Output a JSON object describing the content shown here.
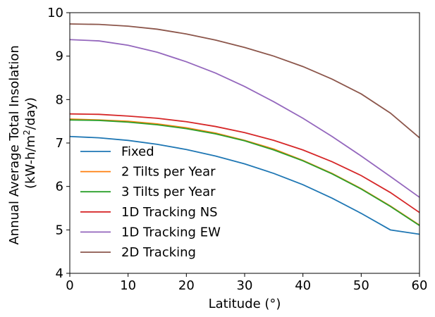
{
  "chart_data": {
    "type": "line",
    "title": "",
    "xlabel": "Latitude (°)",
    "ylabel_line1": "Annual Average Total Insolation",
    "ylabel_line2_prefix": "(kW-h/m",
    "ylabel_line2_sup": "2",
    "ylabel_line2_suffix": "/day)",
    "xlim": [
      0,
      60
    ],
    "ylim": [
      4,
      10
    ],
    "xticks": [
      0,
      10,
      20,
      30,
      40,
      50,
      60
    ],
    "yticks": [
      4,
      5,
      6,
      7,
      8,
      9,
      10
    ],
    "grid": false,
    "legend_position": "lower-left",
    "x": [
      0,
      5,
      10,
      15,
      20,
      25,
      30,
      35,
      40,
      45,
      50,
      55,
      60
    ],
    "series": [
      {
        "name": "Fixed",
        "color": "#1f77b4",
        "values": [
          7.15,
          7.12,
          7.06,
          6.97,
          6.85,
          6.7,
          6.52,
          6.3,
          6.04,
          5.73,
          5.38,
          5.0,
          4.9
        ]
      },
      {
        "name": "2 Tilts per Year",
        "color": "#ff7f0e",
        "values": [
          7.55,
          7.53,
          7.5,
          7.44,
          7.35,
          7.23,
          7.06,
          6.86,
          6.6,
          6.3,
          5.95,
          5.55,
          5.11
        ]
      },
      {
        "name": "3 Tilts per Year",
        "color": "#2ca02c",
        "values": [
          7.53,
          7.52,
          7.48,
          7.42,
          7.33,
          7.21,
          7.05,
          6.84,
          6.59,
          6.29,
          5.94,
          5.54,
          5.1
        ]
      },
      {
        "name": "1D Tracking NS",
        "color": "#d62728",
        "values": [
          7.67,
          7.66,
          7.62,
          7.57,
          7.49,
          7.38,
          7.24,
          7.06,
          6.84,
          6.57,
          6.25,
          5.86,
          5.4
        ]
      },
      {
        "name": "1D Tracking EW",
        "color": "#9467bd",
        "values": [
          9.38,
          9.35,
          9.25,
          9.09,
          8.87,
          8.61,
          8.3,
          7.95,
          7.57,
          7.15,
          6.7,
          6.23,
          5.75
        ]
      },
      {
        "name": "2D Tracking",
        "color": "#8c564b",
        "values": [
          9.74,
          9.73,
          9.69,
          9.62,
          9.51,
          9.37,
          9.2,
          9.0,
          8.76,
          8.47,
          8.13,
          7.69,
          7.12
        ]
      }
    ]
  }
}
